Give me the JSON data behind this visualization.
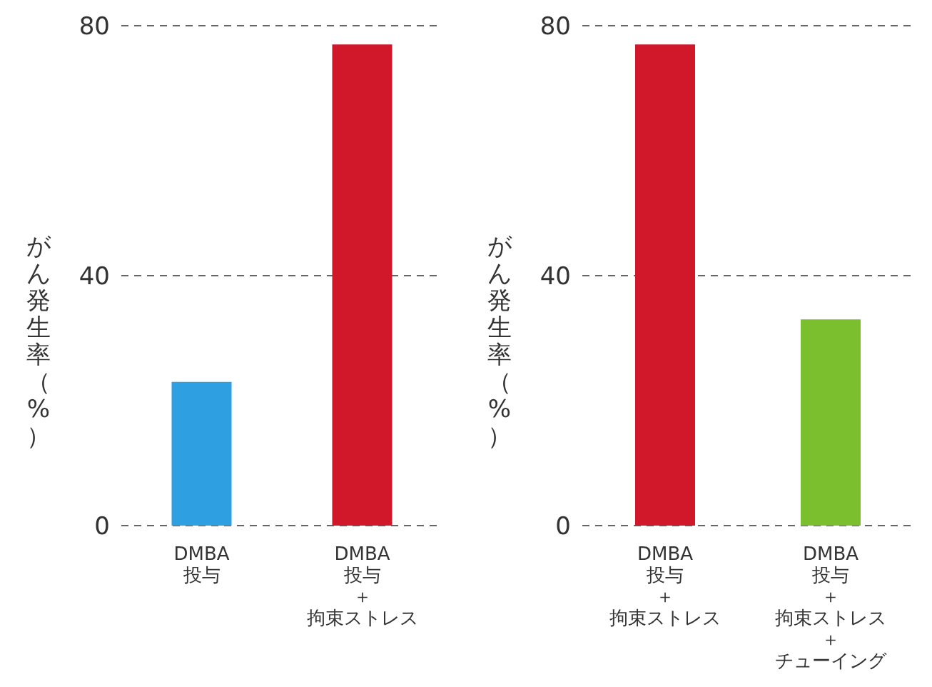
{
  "chart_data": [
    {
      "type": "bar",
      "ylabel": "がん発生率（%）",
      "categories": [
        "DMBA投与",
        "DMBA投与＋拘束ストレス"
      ],
      "values": [
        23,
        77
      ],
      "colors": [
        "#2e9fe0",
        "#d0182a"
      ],
      "ylim": [
        0,
        80
      ],
      "yticks": [
        0,
        40,
        80
      ],
      "grid": "y"
    },
    {
      "type": "bar",
      "ylabel": "がん発生率（%）",
      "categories": [
        "DMBA投与＋拘束ストレス",
        "DMBA投与＋拘束ストレス＋チューイング"
      ],
      "values": [
        77,
        33
      ],
      "colors": [
        "#d0182a",
        "#7bbf2e"
      ],
      "ylim": [
        0,
        80
      ],
      "yticks": [
        0,
        40,
        80
      ],
      "grid": "y"
    }
  ]
}
